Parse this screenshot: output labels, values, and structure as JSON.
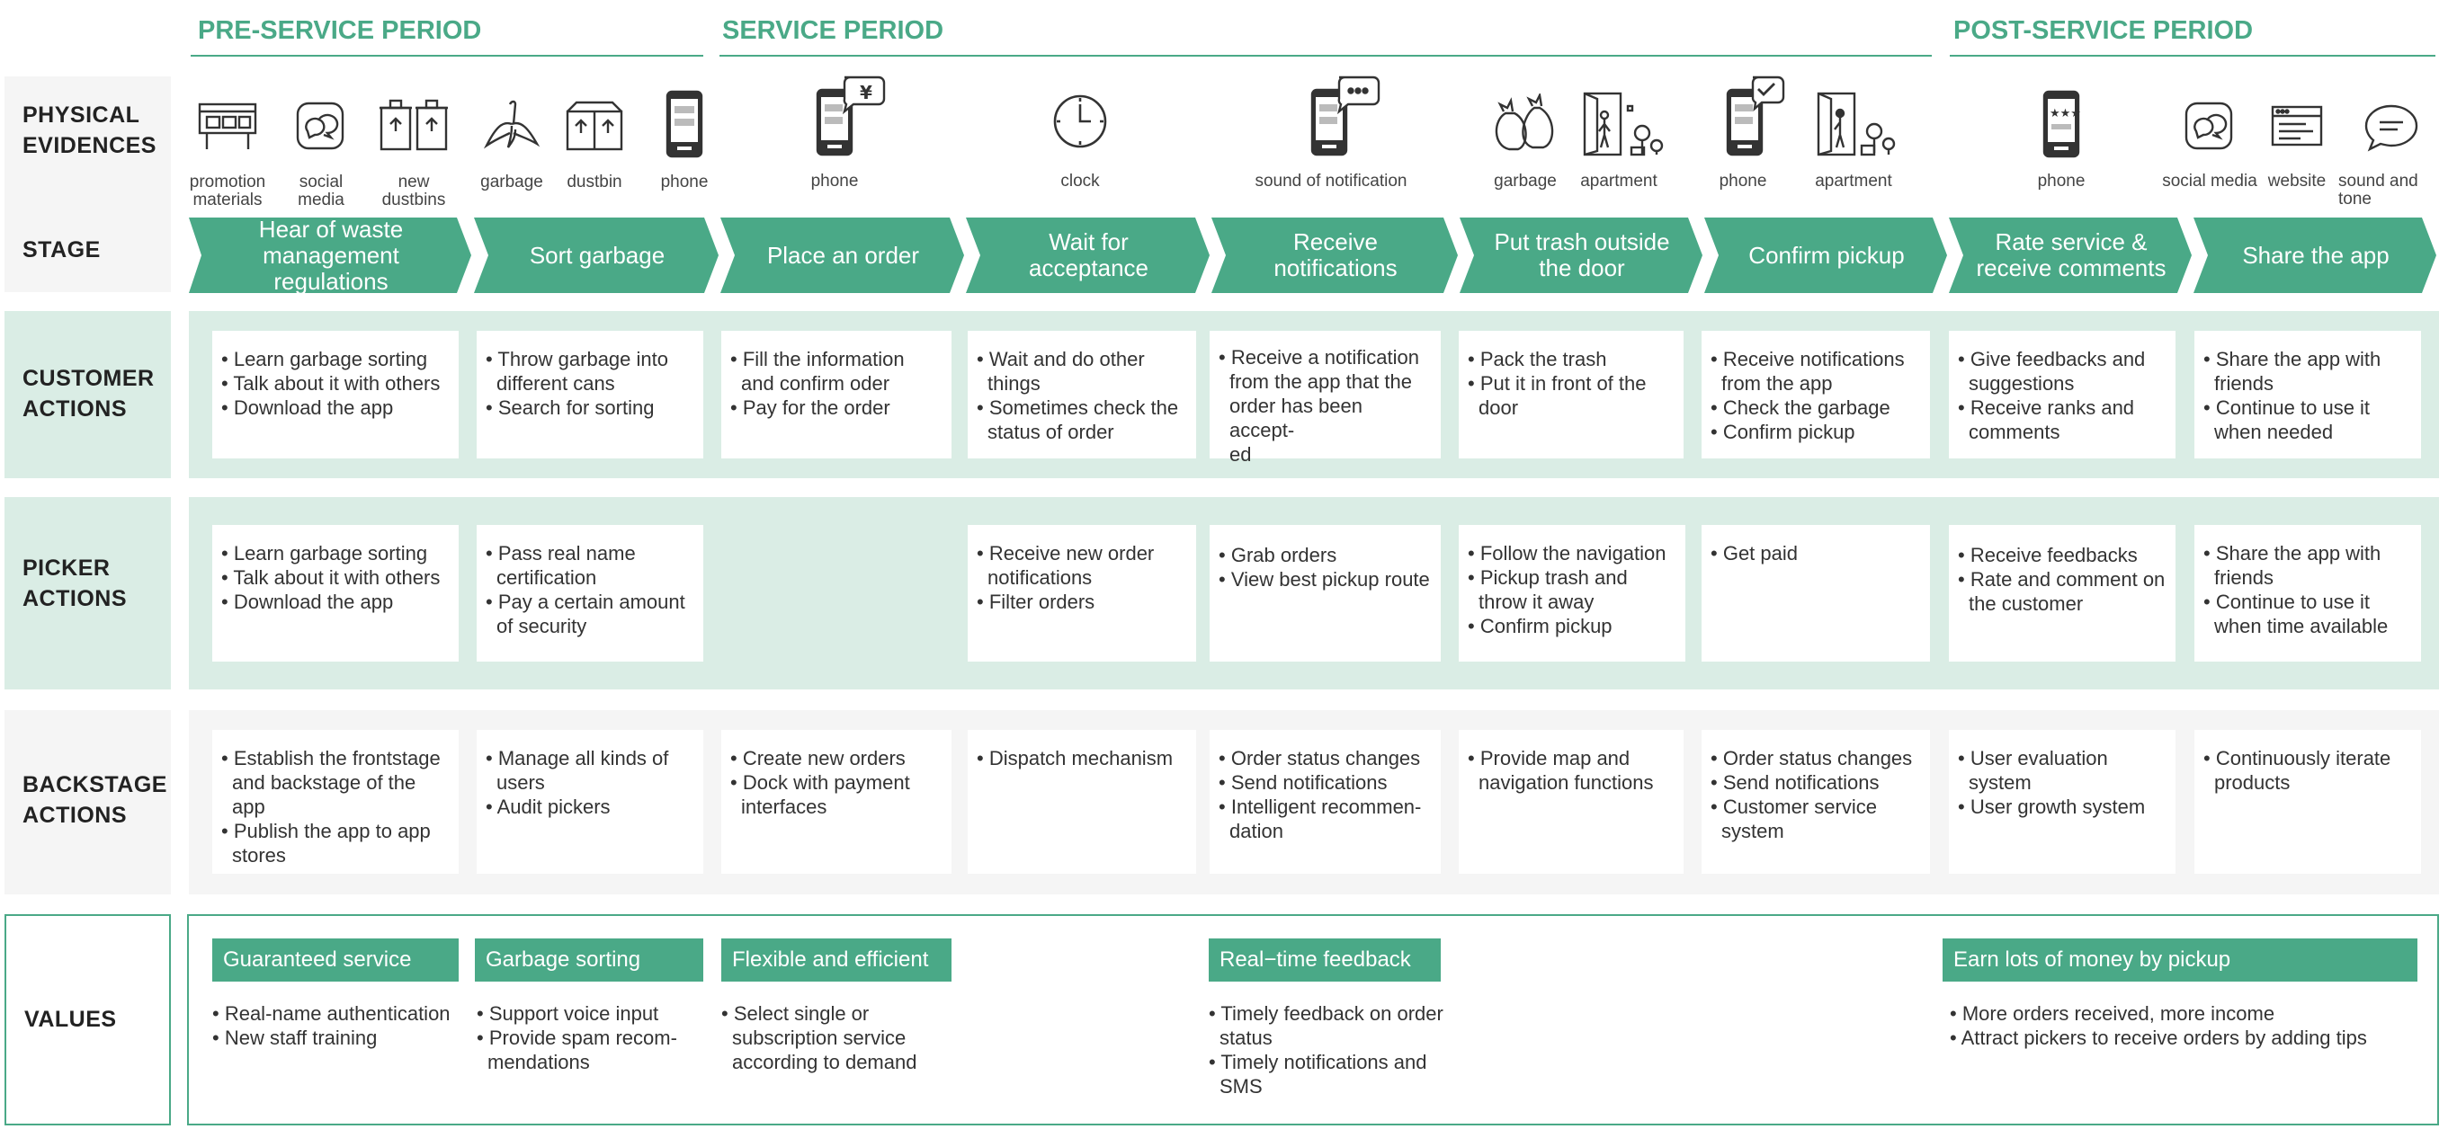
{
  "periods": {
    "pre": "PRE-SERVICE PERIOD",
    "service": "SERVICE PERIOD",
    "post": "POST-SERVICE PERIOD"
  },
  "row_labels": {
    "evidence": "PHYSICAL\nEVIDENCES",
    "stage": "STAGE",
    "customer": "CUSTOMER\nACTIONS",
    "picker": "PICKER\nACTIONS",
    "backstage": "BACKSTAGE\nACTIONS",
    "values": "VALUES"
  },
  "evidences": {
    "promotion": {
      "label": "promotion\nmaterials",
      "icon": "billboard-icon"
    },
    "social1": {
      "label": "social\nmedia",
      "icon": "chat-bubble-icon"
    },
    "dustbins": {
      "label": "new\ndustbins",
      "icon": "dustbins-icon"
    },
    "garbage1": {
      "label": "garbage",
      "icon": "banana-peel-icon"
    },
    "dustbin": {
      "label": "dustbin",
      "icon": "box-bin-icon"
    },
    "phone1": {
      "label": "phone",
      "icon": "phone-icon"
    },
    "phone2": {
      "label": "phone",
      "icon": "phone-yuan-icon"
    },
    "clock": {
      "label": "clock",
      "icon": "clock-icon"
    },
    "notify": {
      "label": "sound of notification",
      "icon": "phone-message-icon"
    },
    "garbage2": {
      "label": "garbage",
      "icon": "trash-bags-icon"
    },
    "apartment1": {
      "label": "apartment",
      "icon": "apartment-door-icon"
    },
    "phone3": {
      "label": "phone",
      "icon": "phone-check-icon"
    },
    "apartment2": {
      "label": "apartment",
      "icon": "apartment-person-icon"
    },
    "phone4": {
      "label": "phone",
      "icon": "phone-stars-icon"
    },
    "social2": {
      "label": "social media",
      "icon": "chat-bubble-icon"
    },
    "website": {
      "label": "website",
      "icon": "browser-window-icon"
    },
    "tone": {
      "label": "sound and tone",
      "icon": "speech-bubble-icon"
    }
  },
  "stages": [
    "Hear of waste\nmanagement regulations",
    "Sort garbage",
    "Place an order",
    "Wait for acceptance",
    "Receive notifications",
    "Put trash outside\nthe door",
    "Confirm pickup",
    "Rate service &\nreceive comments",
    "Share the app"
  ],
  "customer": [
    [
      "Learn garbage sorting",
      "Talk about it with others",
      "Download the app"
    ],
    [
      "Throw garbage into different cans",
      "Search for sorting"
    ],
    [
      "Fill the information and confirm oder",
      "Pay for the order"
    ],
    [
      "Wait and do other things",
      "Sometimes check the status of order"
    ],
    [
      "Receive a notification from the app that the order has been accept-\ned"
    ],
    [
      "Pack the trash",
      "Put it in front of the door"
    ],
    [
      "Receive notifications from the app",
      "Check the garbage",
      "Confirm pickup"
    ],
    [
      "Give feedbacks and suggestions",
      "Receive ranks and comments"
    ],
    [
      "Share the app with friends",
      "Continue to use it when needed"
    ]
  ],
  "picker": [
    [
      "Learn garbage sorting",
      "Talk about it with others",
      "Download the app"
    ],
    [
      "Pass real name certification",
      "Pay a certain amount of security"
    ],
    [
      "Receive new order notifications",
      "Filter orders"
    ],
    [
      "Grab orders",
      "View best pickup route"
    ],
    [
      "Follow the navigation",
      "Pickup trash and throw it away",
      "Confirm pickup"
    ],
    [
      "Get paid"
    ],
    [
      "Receive feedbacks",
      "Rate and comment on the customer"
    ],
    [
      "Share the app with friends",
      "Continue to use it when time available"
    ]
  ],
  "backstage": [
    [
      "Establish the frontstage and backstage of the app",
      "Publish the app to app stores"
    ],
    [
      "Manage all kinds of users",
      "Audit pickers"
    ],
    [
      "Create new orders",
      "Dock with payment interfaces"
    ],
    [
      "Dispatch mechanism"
    ],
    [
      "Order status changes",
      "Send notifications",
      "Intelligent recommen-\ndation"
    ],
    [
      "Provide map and navigation functions"
    ],
    [
      "Order status changes",
      "Send notifications",
      "Customer service system"
    ],
    [
      "User evaluation system",
      "User growth system"
    ],
    [
      "Continuously iterate products"
    ]
  ],
  "values": [
    {
      "title": "Guaranteed service",
      "items": [
        "Real-name authentication",
        "New staff training"
      ]
    },
    {
      "title": "Garbage sorting",
      "items": [
        "Support voice input",
        "Provide spam recom-\nmendations"
      ]
    },
    {
      "title": "Flexible and efficient",
      "items": [
        "Select single or subscription service according to demand"
      ]
    },
    {
      "title": "Real−time feedback",
      "items": [
        "Timely feedback on order status",
        "Timely notifications and SMS"
      ]
    },
    {
      "title": "Earn lots of money by pickup",
      "items": [
        "More orders received, more income",
        "Attract pickers to receive orders by adding tips"
      ]
    }
  ],
  "colors": {
    "accent": "#4aa987",
    "light_green": "#daede5",
    "grey_band": "#f5f5f5",
    "icon_stroke": "#333333"
  }
}
